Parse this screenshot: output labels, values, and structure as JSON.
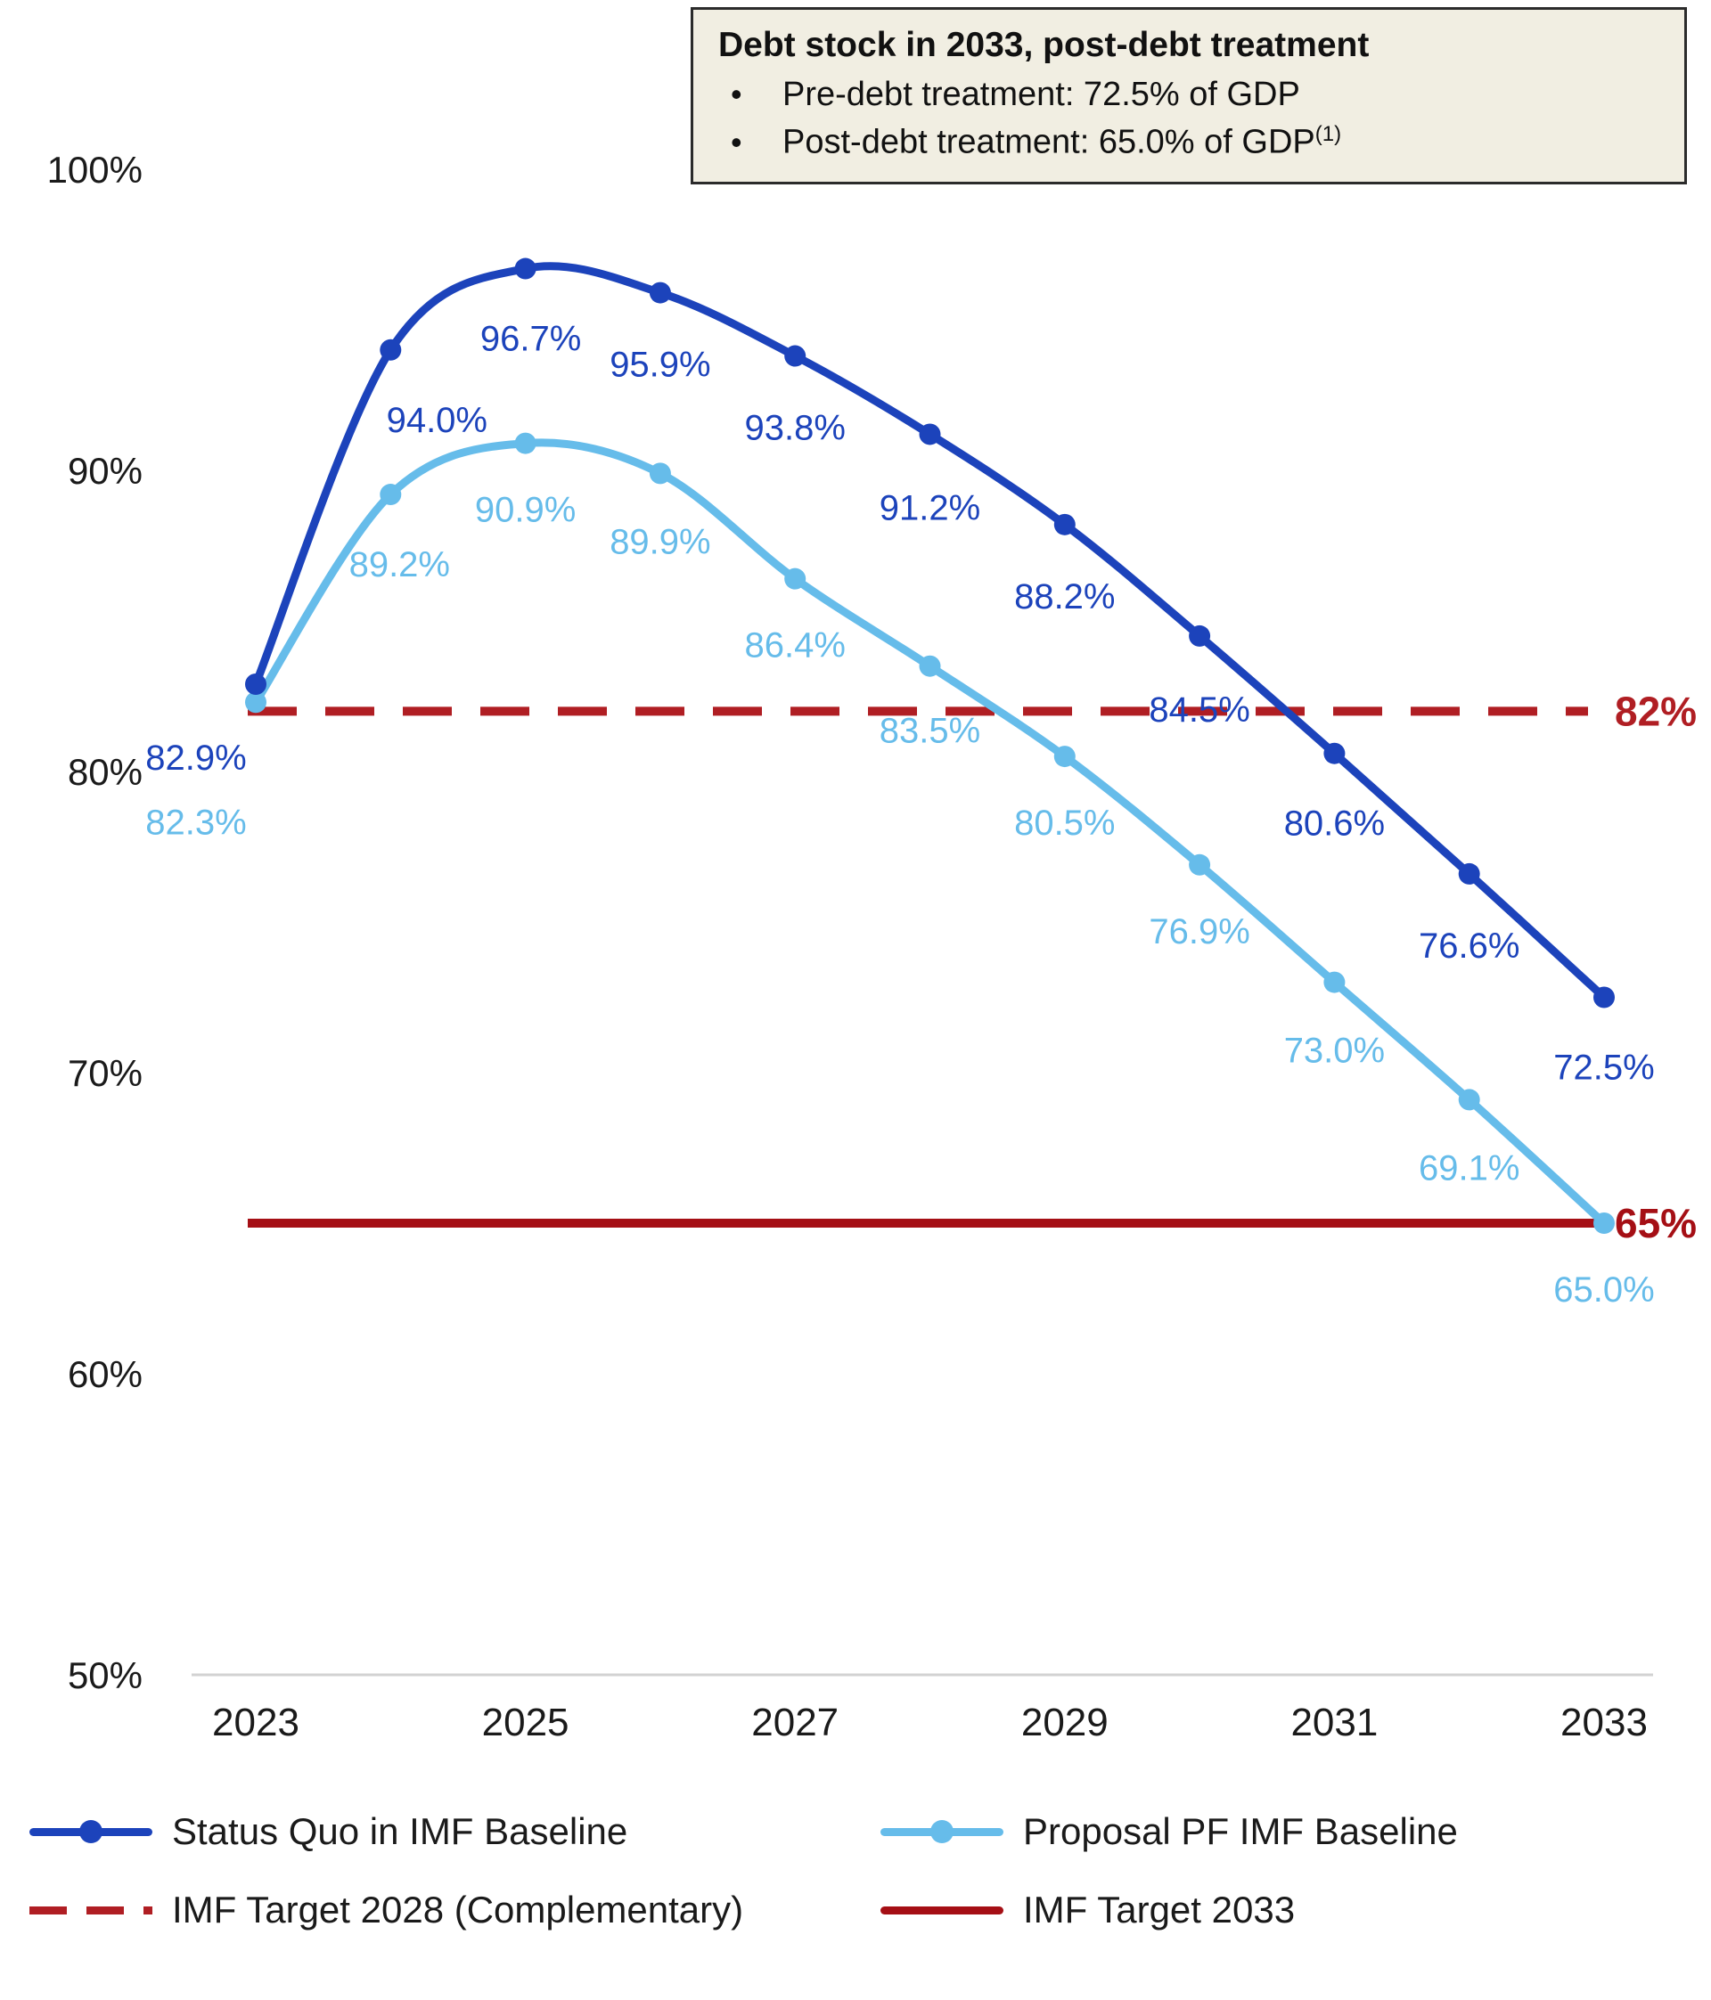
{
  "info_box": {
    "title": "Debt stock in 2033, post-debt treatment",
    "bullet_char": "•",
    "bullets": [
      "Pre-debt treatment: 72.5% of GDP",
      "Post-debt treatment: 65.0% of GDP"
    ],
    "superscript": "(1)"
  },
  "chart_data": {
    "type": "line",
    "x": [
      2023,
      2024,
      2025,
      2026,
      2027,
      2028,
      2029,
      2030,
      2031,
      2032,
      2033
    ],
    "x_ticks": [
      2023,
      2025,
      2027,
      2029,
      2031,
      2033
    ],
    "x_tick_labels": [
      "2023",
      "2025",
      "2027",
      "2029",
      "2031",
      "2033"
    ],
    "ylim": [
      50,
      100
    ],
    "y_ticks": [
      100,
      90,
      80,
      70,
      60,
      50
    ],
    "y_tick_labels": [
      "100%",
      "90%",
      "80%",
      "70%",
      "60%",
      "50%"
    ],
    "grid": "baseline-only",
    "legend_position": "bottom",
    "series": [
      {
        "name": "Status Quo in IMF Baseline",
        "color": "#1C43BB",
        "values": [
          82.9,
          94.0,
          96.7,
          95.9,
          93.8,
          91.2,
          88.2,
          84.5,
          80.6,
          76.6,
          72.5
        ],
        "labels": [
          "82.9%",
          "94.0%",
          "96.7%",
          "95.9%",
          "93.8%",
          "91.2%",
          "88.2%",
          "84.5%",
          "80.6%",
          "76.6%",
          "72.5%"
        ]
      },
      {
        "name": "Proposal PF IMF Baseline",
        "color": "#66BCEA",
        "values": [
          82.3,
          89.2,
          90.9,
          89.9,
          86.4,
          83.5,
          80.5,
          76.9,
          73.0,
          69.1,
          65.0
        ],
        "labels": [
          "82.3%",
          "89.2%",
          "90.9%",
          "89.9%",
          "86.4%",
          "83.5%",
          "80.5%",
          "76.9%",
          "73.0%",
          "69.1%",
          "65.0%"
        ]
      }
    ],
    "reference_lines": [
      {
        "name": "IMF Target 2028 (Complementary)",
        "value": 82,
        "label": "82%",
        "style": "dashed",
        "color": "#B01E23"
      },
      {
        "name": "IMF Target 2033",
        "value": 65,
        "label": "65%",
        "style": "solid",
        "color": "#A50F15"
      }
    ]
  },
  "legend": {
    "items": [
      {
        "label": "Status Quo in IMF Baseline"
      },
      {
        "label": "Proposal PF IMF Baseline"
      },
      {
        "label": "IMF Target 2028 (Complementary)"
      },
      {
        "label": "IMF Target 2033"
      }
    ]
  }
}
